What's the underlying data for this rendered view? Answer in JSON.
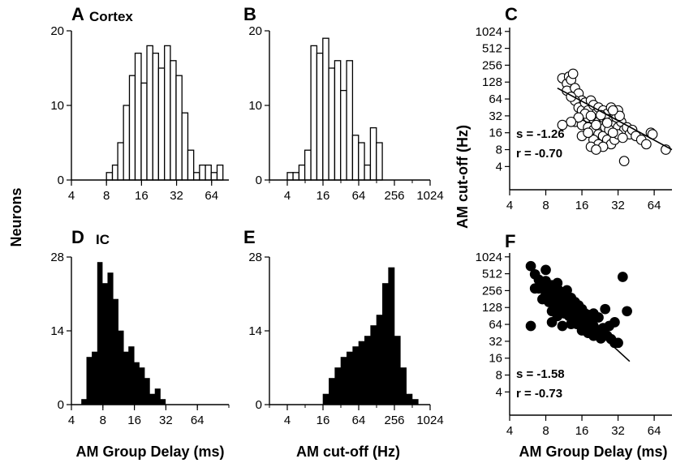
{
  "chart_data": [
    {
      "panel": "A",
      "title": "Cortex",
      "type": "bar",
      "x_scale": "log2",
      "xlim": [
        4,
        90
      ],
      "ylim": [
        0,
        20
      ],
      "x_ticks": [
        "4",
        "8",
        "16",
        "32",
        "64"
      ],
      "y_ticks": [
        "0",
        "10",
        "20"
      ],
      "bin_left_edges_ms": [
        8.0,
        9.0,
        10.0,
        11.2,
        12.6,
        14.1,
        15.9,
        17.8,
        20.0,
        22.4,
        25.2,
        28.3,
        31.7,
        35.6,
        40.0,
        44.9,
        50.4,
        56.6,
        63.5,
        71.3
      ],
      "values": [
        1,
        2,
        5,
        10,
        14,
        17,
        13,
        18,
        17,
        15,
        18,
        16,
        14,
        9,
        4,
        1,
        2,
        2,
        1,
        2
      ]
    },
    {
      "panel": "B",
      "title": "",
      "type": "bar",
      "x_scale": "log2",
      "xlim": [
        2,
        1024
      ],
      "ylim": [
        0,
        20
      ],
      "x_ticks": [
        "4",
        "16",
        "64",
        "256",
        "1024"
      ],
      "y_ticks": [
        "0",
        "10",
        "20"
      ],
      "bin_left_edges_hz": [
        4.0,
        5.0,
        6.3,
        7.9,
        10.0,
        12.6,
        15.9,
        20.0,
        25.2,
        31.7,
        40.0,
        50.4,
        63.5,
        80.0,
        100.8,
        127.0,
        160.0
      ],
      "values": [
        1,
        1,
        2,
        4,
        18,
        17,
        19,
        15,
        16,
        12,
        16,
        6,
        5,
        2,
        7,
        5,
        0
      ]
    },
    {
      "panel": "C",
      "title": "",
      "type": "scatter",
      "marker": "open",
      "x_scale": "log2",
      "y_scale": "log2",
      "xlim": [
        4,
        90
      ],
      "ylim": [
        3,
        1200
      ],
      "x_ticks": [
        "4",
        "8",
        "16",
        "32",
        "64"
      ],
      "y_ticks": [
        "4",
        "8",
        "16",
        "32",
        "64",
        "128",
        "256",
        "512",
        "1024"
      ],
      "ylabel": "AM cut-off (Hz)",
      "stats": [
        "s = -1.26",
        "r  = -0.70"
      ],
      "fit": {
        "x": [
          10,
          90
        ],
        "y": [
          100,
          8
        ]
      },
      "points": [
        [
          11,
          150
        ],
        [
          12,
          120
        ],
        [
          12.5,
          160
        ],
        [
          13,
          140
        ],
        [
          13.5,
          180
        ],
        [
          12,
          90
        ],
        [
          14,
          100
        ],
        [
          15,
          80
        ],
        [
          16,
          60
        ],
        [
          14,
          60
        ],
        [
          13,
          70
        ],
        [
          15,
          45
        ],
        [
          16,
          40
        ],
        [
          17,
          55
        ],
        [
          18,
          40
        ],
        [
          19,
          60
        ],
        [
          20,
          50
        ],
        [
          22,
          45
        ],
        [
          24,
          40
        ],
        [
          26,
          35
        ],
        [
          28,
          45
        ],
        [
          30,
          35
        ],
        [
          32,
          40
        ],
        [
          18,
          30
        ],
        [
          20,
          28
        ],
        [
          22,
          25
        ],
        [
          24,
          30
        ],
        [
          26,
          28
        ],
        [
          28,
          25
        ],
        [
          30,
          22
        ],
        [
          32,
          20
        ],
        [
          34,
          25
        ],
        [
          36,
          18
        ],
        [
          38,
          20
        ],
        [
          40,
          15
        ],
        [
          42,
          18
        ],
        [
          14,
          25
        ],
        [
          16,
          22
        ],
        [
          18,
          20
        ],
        [
          20,
          18
        ],
        [
          22,
          15
        ],
        [
          24,
          14
        ],
        [
          26,
          12
        ],
        [
          28,
          10
        ],
        [
          30,
          12
        ],
        [
          32,
          15
        ],
        [
          20,
          12
        ],
        [
          22,
          10
        ],
        [
          24,
          9
        ],
        [
          19,
          9
        ],
        [
          21,
          8
        ],
        [
          35,
          13
        ],
        [
          45,
          14
        ],
        [
          50,
          12
        ],
        [
          55,
          10
        ],
        [
          60,
          16
        ],
        [
          62,
          15
        ],
        [
          80,
          8
        ],
        [
          36,
          5
        ],
        [
          17,
          35
        ],
        [
          19,
          32
        ],
        [
          23,
          33
        ],
        [
          25,
          20
        ],
        [
          27,
          18
        ],
        [
          29,
          16
        ],
        [
          21,
          22
        ],
        [
          15,
          30
        ],
        [
          13,
          25
        ],
        [
          11,
          22
        ],
        [
          16,
          14
        ],
        [
          18,
          16
        ],
        [
          26,
          24
        ],
        [
          31,
          30
        ],
        [
          33,
          32
        ],
        [
          29,
          40
        ]
      ]
    },
    {
      "panel": "D",
      "title": "IC",
      "type": "bar",
      "x_scale": "log2",
      "xlim": [
        4,
        128
      ],
      "ylim": [
        0,
        28
      ],
      "x_ticks": [
        "4",
        "8",
        "16",
        "32",
        "64"
      ],
      "y_ticks": [
        "0",
        "14",
        "28"
      ],
      "bin_left_edges_ms": [
        5.0,
        5.6,
        6.3,
        7.1,
        7.9,
        8.9,
        10.0,
        11.2,
        12.6,
        14.1,
        15.9,
        17.8,
        20.0,
        22.4,
        25.2,
        28.3,
        31.7
      ],
      "values": [
        1,
        9,
        10,
        27,
        23,
        25,
        20,
        14,
        10,
        11,
        8,
        7,
        5,
        2,
        3,
        1,
        0
      ]
    },
    {
      "panel": "E",
      "title": "",
      "type": "bar",
      "x_scale": "log2",
      "xlim": [
        2,
        1024
      ],
      "ylim": [
        0,
        28
      ],
      "x_ticks": [
        "4",
        "16",
        "64",
        "256",
        "1024"
      ],
      "y_ticks": [
        "0",
        "14",
        "28"
      ],
      "bin_left_edges_hz": [
        16.0,
        20.2,
        25.4,
        32.0,
        40.3,
        50.8,
        64.0,
        80.6,
        101.6,
        128.0,
        161.3,
        203.2,
        256.0,
        322.5,
        406.4,
        512.0,
        645.1
      ],
      "values": [
        2,
        5,
        7,
        9,
        10,
        11,
        12,
        13,
        15,
        17,
        23,
        26,
        13,
        7,
        2,
        1,
        0
      ]
    },
    {
      "panel": "F",
      "title": "",
      "type": "scatter",
      "marker": "filled",
      "x_scale": "log2",
      "y_scale": "log2",
      "xlim": [
        4,
        90
      ],
      "ylim": [
        3,
        1200
      ],
      "x_ticks": [
        "4",
        "8",
        "16",
        "32",
        "64"
      ],
      "y_ticks": [
        "4",
        "8",
        "16",
        "32",
        "64",
        "128",
        "256",
        "512",
        "1024"
      ],
      "stats": [
        "s = -1.58",
        "r  = -0.73"
      ],
      "fit": {
        "x": [
          6.5,
          40
        ],
        "y": [
          500,
          14
        ]
      },
      "points": [
        [
          6,
          700
        ],
        [
          6.5,
          500
        ],
        [
          7,
          400
        ],
        [
          7.5,
          350
        ],
        [
          8,
          300
        ],
        [
          8.5,
          280
        ],
        [
          9,
          250
        ],
        [
          9.5,
          220
        ],
        [
          10,
          200
        ],
        [
          11,
          180
        ],
        [
          12,
          150
        ],
        [
          13,
          130
        ],
        [
          14,
          110
        ],
        [
          15,
          100
        ],
        [
          16,
          80
        ],
        [
          18,
          70
        ],
        [
          20,
          60
        ],
        [
          22,
          50
        ],
        [
          24,
          45
        ],
        [
          26,
          40
        ],
        [
          28,
          35
        ],
        [
          30,
          30
        ],
        [
          7,
          280
        ],
        [
          8,
          220
        ],
        [
          9,
          180
        ],
        [
          10,
          150
        ],
        [
          11,
          130
        ],
        [
          12,
          110
        ],
        [
          13,
          95
        ],
        [
          14,
          85
        ],
        [
          15,
          70
        ],
        [
          16,
          60
        ],
        [
          17,
          55
        ],
        [
          19,
          48
        ],
        [
          21,
          42
        ],
        [
          23,
          36
        ],
        [
          7.5,
          180
        ],
        [
          8.5,
          160
        ],
        [
          9.5,
          140
        ],
        [
          10.5,
          120
        ],
        [
          11.5,
          100
        ],
        [
          12.5,
          90
        ],
        [
          13.5,
          80
        ],
        [
          14.5,
          65
        ],
        [
          16,
          50
        ],
        [
          18,
          45
        ],
        [
          20,
          40
        ],
        [
          8,
          380
        ],
        [
          9,
          320
        ],
        [
          10,
          280
        ],
        [
          11,
          240
        ],
        [
          12,
          210
        ],
        [
          13,
          190
        ],
        [
          14,
          160
        ],
        [
          15,
          140
        ],
        [
          16,
          120
        ],
        [
          17,
          100
        ],
        [
          8,
          600
        ],
        [
          10,
          350
        ],
        [
          12,
          260
        ],
        [
          6.5,
          280
        ],
        [
          6,
          60
        ],
        [
          9,
          70
        ],
        [
          11,
          60
        ],
        [
          25,
          120
        ],
        [
          27,
          60
        ],
        [
          30,
          70
        ],
        [
          35,
          450
        ],
        [
          38,
          110
        ],
        [
          32,
          30
        ],
        [
          20,
          100
        ],
        [
          22,
          85
        ],
        [
          18,
          95
        ],
        [
          19,
          75
        ],
        [
          24,
          55
        ],
        [
          13,
          65
        ],
        [
          10,
          90
        ],
        [
          9,
          110
        ]
      ]
    }
  ],
  "axis_labels": {
    "neurons": "Neurons",
    "am_cutoff": "AM cut-off (Hz)",
    "group_delay_d": "AM Group Delay (ms)",
    "cutoff_e": "AM cut-off (Hz)",
    "group_delay_f": "AM Group Delay (ms)"
  },
  "colors": {
    "ink": "#000000",
    "open_fill": "#ffffff",
    "bar_fill_D_E": "#000000",
    "bar_fill_A_B": "#ffffff"
  }
}
